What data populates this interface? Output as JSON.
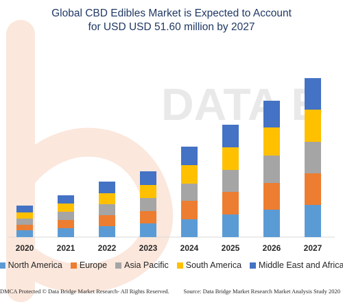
{
  "title_line1": "Global CBD Edibles Market is Expected to Account",
  "title_line2": "for USD USD 51.60 million by 2027",
  "watermark_text": "DATA B",
  "footer": {
    "left": "DMCA Protected © Data Bridge Market Research- All Rights Reserved.",
    "right": "Source: Data Bridge Market Research Market Analysis Study 2020"
  },
  "chart_data": {
    "type": "bar",
    "stacked": true,
    "title": "Global CBD Edibles Market is Expected to Account for USD USD 51.60 million by 2027",
    "xlabel": "",
    "ylabel": "",
    "grid": false,
    "legend_position": "bottom",
    "categories": [
      "2020",
      "2021",
      "2022",
      "2023",
      "2024",
      "2025",
      "2026",
      "2027"
    ],
    "series": [
      {
        "name": "North America",
        "color": "#5b9bd5",
        "values": [
          10,
          13,
          16,
          20,
          26,
          33,
          40,
          47
        ]
      },
      {
        "name": "Europe",
        "color": "#ed7d31",
        "values": [
          8,
          12,
          16,
          18,
          27,
          33,
          39,
          46
        ]
      },
      {
        "name": "Asia Pacific",
        "color": "#a5a5a5",
        "values": [
          9,
          12,
          16,
          19,
          25,
          32,
          40,
          46
        ]
      },
      {
        "name": "South America",
        "color": "#ffc000",
        "values": [
          9,
          12,
          16,
          19,
          27,
          33,
          41,
          47
        ]
      },
      {
        "name": "Middle East and Africa",
        "color": "#4472c4",
        "values": [
          10,
          12,
          17,
          20,
          27,
          33,
          39,
          46
        ]
      }
    ]
  }
}
